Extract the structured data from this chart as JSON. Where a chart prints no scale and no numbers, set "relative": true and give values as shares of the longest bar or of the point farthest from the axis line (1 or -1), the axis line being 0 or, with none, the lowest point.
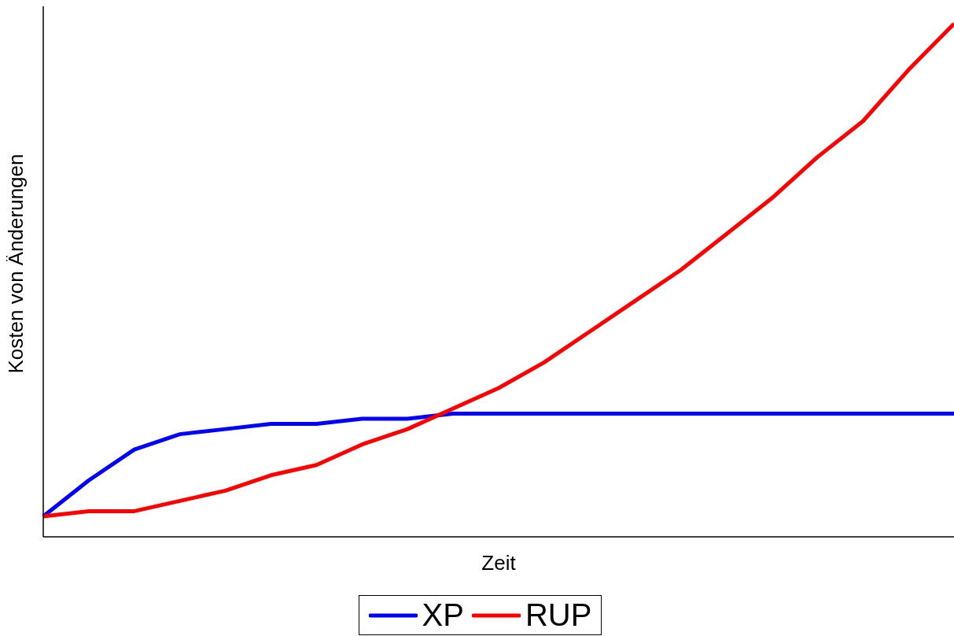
{
  "chart_data": {
    "type": "line",
    "xlabel": "Zeit",
    "ylabel": "Kosten von Änderungen",
    "relative": true,
    "legend": "bottom",
    "grid": false,
    "marker": "none",
    "line_style": "solid",
    "categories": [
      null,
      null,
      null,
      null,
      null,
      null,
      null,
      null,
      null,
      null,
      null,
      null,
      null,
      null,
      null,
      null,
      null,
      null,
      null,
      null,
      null
    ],
    "series": [
      {
        "name": "XP",
        "color": "#0000ff",
        "values": [
          0.04,
          0.11,
          0.17,
          0.2,
          0.21,
          0.22,
          0.22,
          0.23,
          0.23,
          0.24,
          0.24,
          0.24,
          0.24,
          0.24,
          0.24,
          0.24,
          0.24,
          0.24,
          0.24,
          0.24,
          0.24
        ]
      },
      {
        "name": "RUP",
        "color": "#ff0000",
        "values": [
          0.04,
          0.05,
          0.05,
          0.07,
          0.09,
          0.12,
          0.14,
          0.18,
          0.21,
          0.25,
          0.29,
          0.34,
          0.4,
          0.46,
          0.52,
          0.59,
          0.66,
          0.74,
          0.81,
          0.91,
          1.0
        ]
      }
    ]
  }
}
